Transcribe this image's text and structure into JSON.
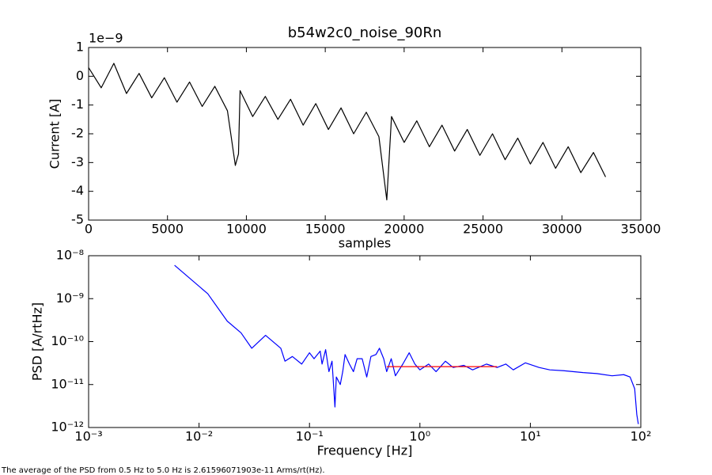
{
  "chart_data": [
    {
      "type": "line",
      "title": "b54w2c0_noise_90Rn",
      "x_label": "samples",
      "y_label": "Current [A]",
      "y_offset_text": "1e−9",
      "xlim": [
        0,
        35000
      ],
      "xticks": [
        0,
        5000,
        10000,
        15000,
        20000,
        25000,
        30000,
        35000
      ],
      "ylim": [
        -5,
        1
      ],
      "yticks": [
        -5,
        -4,
        -3,
        -2,
        -1,
        0,
        1
      ],
      "series": [
        {
          "color": "#000000",
          "x": [
            0,
            800,
            1600,
            2400,
            3200,
            4000,
            4800,
            5600,
            6400,
            7200,
            8000,
            8800,
            9300,
            9500,
            9600,
            10400,
            11200,
            12000,
            12800,
            13600,
            14400,
            15200,
            16000,
            16800,
            17600,
            18400,
            18900,
            19200,
            20000,
            20800,
            21600,
            22400,
            23200,
            24000,
            24800,
            25600,
            26400,
            27200,
            28000,
            28800,
            29600,
            30400,
            31200,
            32000,
            32768
          ],
          "values": [
            0.3,
            -0.4,
            0.45,
            -0.6,
            0.1,
            -0.75,
            -0.05,
            -0.9,
            -0.2,
            -1.05,
            -0.35,
            -1.2,
            -3.1,
            -2.7,
            -0.5,
            -1.4,
            -0.7,
            -1.5,
            -0.8,
            -1.7,
            -0.95,
            -1.85,
            -1.1,
            -2.0,
            -1.25,
            -2.1,
            -4.3,
            -1.4,
            -2.3,
            -1.55,
            -2.45,
            -1.7,
            -2.6,
            -1.85,
            -2.75,
            -2.0,
            -2.9,
            -2.15,
            -3.05,
            -2.3,
            -3.2,
            -2.45,
            -3.35,
            -2.65,
            -3.5
          ]
        }
      ]
    },
    {
      "type": "line",
      "x_label": "Frequency [Hz]",
      "y_label": "PSD [A/rtHz]",
      "xscale": "log",
      "yscale": "log",
      "xlim": [
        0.001,
        100
      ],
      "xticks": [
        {
          "value": 0.001,
          "label": "10⁻³"
        },
        {
          "value": 0.01,
          "label": "10⁻²"
        },
        {
          "value": 0.1,
          "label": "10⁻¹"
        },
        {
          "value": 1,
          "label": "10⁰"
        },
        {
          "value": 10,
          "label": "10¹"
        },
        {
          "value": 100,
          "label": "10²"
        }
      ],
      "ylim": [
        1e-12,
        1e-08
      ],
      "yticks": [
        {
          "value": 1e-12,
          "label": "10⁻¹²"
        },
        {
          "value": 1e-11,
          "label": "10⁻¹¹"
        },
        {
          "value": 1e-10,
          "label": "10⁻¹⁰"
        },
        {
          "value": 1e-09,
          "label": "10⁻⁹"
        },
        {
          "value": 1e-08,
          "label": "10⁻⁸"
        }
      ],
      "series": [
        {
          "color": "#0000ff",
          "x": [
            0.006,
            0.012,
            0.018,
            0.024,
            0.03,
            0.04,
            0.055,
            0.06,
            0.07,
            0.085,
            0.1,
            0.11,
            0.125,
            0.13,
            0.14,
            0.15,
            0.16,
            0.17,
            0.175,
            0.19,
            0.2,
            0.21,
            0.23,
            0.25,
            0.27,
            0.3,
            0.33,
            0.36,
            0.4,
            0.43,
            0.47,
            0.5,
            0.55,
            0.6,
            0.7,
            0.8,
            0.9,
            1.0,
            1.2,
            1.4,
            1.7,
            2,
            2.5,
            3,
            4,
            5,
            6,
            7,
            9,
            12,
            15,
            20,
            30,
            40,
            55,
            70,
            80,
            88,
            92,
            95
          ],
          "values": [
            6e-09,
            1.3e-09,
            3e-10,
            1.6e-10,
            7e-11,
            1.4e-10,
            7e-11,
            3.5e-11,
            4.5e-11,
            3e-11,
            5.5e-11,
            4e-11,
            6e-11,
            3e-11,
            6.5e-11,
            2e-11,
            3.5e-11,
            3e-12,
            1.5e-11,
            1e-11,
            2e-11,
            5e-11,
            3e-11,
            2e-11,
            4e-11,
            4e-11,
            1.5e-11,
            4.5e-11,
            5e-11,
            7e-11,
            4e-11,
            2e-11,
            4e-11,
            1.6e-11,
            3e-11,
            5.5e-11,
            3e-11,
            2.2e-11,
            3e-11,
            2e-11,
            3.5e-11,
            2.5e-11,
            2.8e-11,
            2.2e-11,
            3e-11,
            2.5e-11,
            3e-11,
            2.2e-11,
            3.2e-11,
            2.5e-11,
            2.2e-11,
            2.1e-11,
            1.9e-11,
            1.8e-11,
            1.6e-11,
            1.7e-11,
            1.5e-11,
            8e-12,
            2e-12,
            1.2e-12
          ]
        },
        {
          "color": "#ff0000",
          "x": [
            0.5,
            5
          ],
          "values": [
            2.61596071903e-11,
            2.61596071903e-11
          ]
        }
      ]
    }
  ],
  "footnote": "The average of the PSD from 0.5 Hz to 5.0 Hz is 2.61596071903e-11 Arms/rt(Hz)."
}
